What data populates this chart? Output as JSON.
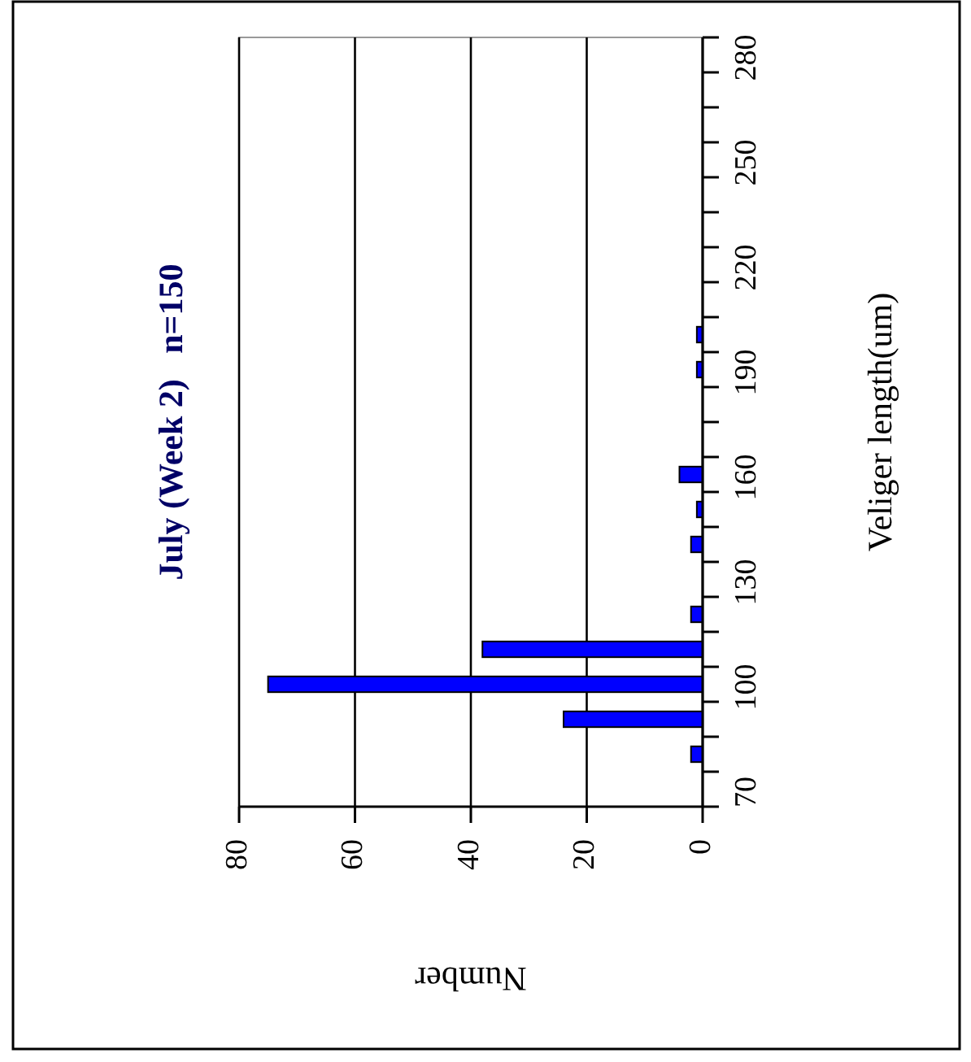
{
  "chart_data": {
    "type": "histogram",
    "orientation": "horizontal",
    "title": "July (Week 2)   n=150",
    "xlabel": "Number",
    "ylabel": "Veliger length(um)",
    "bins": [
      70,
      80,
      90,
      100,
      110,
      120,
      130,
      140,
      150,
      160,
      170,
      180,
      190,
      200,
      210,
      220,
      230,
      240,
      250,
      260,
      270,
      280,
      290
    ],
    "values": [
      0,
      2,
      24,
      75,
      38,
      2,
      0,
      2,
      1,
      4,
      0,
      0,
      1,
      1,
      0,
      0,
      0,
      0,
      0,
      0,
      0,
      0
    ],
    "color": "#0000ff",
    "xlim": [
      80,
      0
    ],
    "xticks": [
      80,
      60,
      40,
      20,
      0
    ],
    "ylim": [
      70,
      290
    ],
    "yticks": [
      70,
      {
        "value": 80,
        "label": null
      },
      {
        "value": 90,
        "label": null
      },
      100,
      {
        "value": 110,
        "label": null
      },
      {
        "value": 120,
        "label": null
      },
      130,
      {
        "value": 140,
        "label": null
      },
      {
        "value": 150,
        "label": null
      },
      160,
      {
        "value": 170,
        "label": null
      },
      {
        "value": 180,
        "label": null
      },
      190,
      {
        "value": 200,
        "label": null
      },
      {
        "value": 210,
        "label": null
      },
      220,
      {
        "value": 230,
        "label": null
      },
      {
        "value": 240,
        "label": null
      },
      250,
      {
        "value": 260,
        "label": null
      },
      {
        "value": 270,
        "label": null
      },
      280,
      {
        "value": 290,
        "label": null
      }
    ],
    "grid": "x"
  }
}
